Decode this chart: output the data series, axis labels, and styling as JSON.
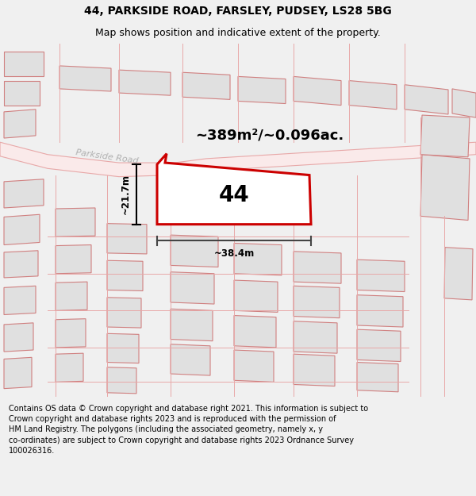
{
  "title": "44, PARKSIDE ROAD, FARSLEY, PUDSEY, LS28 5BG",
  "subtitle": "Map shows position and indicative extent of the property.",
  "footer": "Contains OS data © Crown copyright and database right 2021. This information is subject to\nCrown copyright and database rights 2023 and is reproduced with the permission of\nHM Land Registry. The polygons (including the associated geometry, namely x, y\nco-ordinates) are subject to Crown copyright and database rights 2023 Ordnance Survey\n100026316.",
  "area_label": "~389m²/~0.096ac.",
  "width_label": "~38.4m",
  "height_label": "~21.7m",
  "number_label": "44",
  "bg_color": "#f0f0f0",
  "map_bg": "#ffffff",
  "road_color": "#e8a8a8",
  "building_fill": "#e0e0e0",
  "building_stroke": "#d08080",
  "highlight_color": "#cc0000",
  "road_label": "Parkside Road",
  "title_fontsize": 10,
  "subtitle_fontsize": 9,
  "footer_fontsize": 7
}
